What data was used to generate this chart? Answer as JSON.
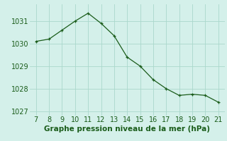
{
  "x": [
    7,
    8,
    9,
    10,
    11,
    12,
    13,
    14,
    15,
    16,
    17,
    18,
    19,
    20,
    21
  ],
  "y": [
    1030.1,
    1030.2,
    1030.6,
    1031.0,
    1031.35,
    1030.9,
    1030.35,
    1029.4,
    1029.0,
    1028.4,
    1028.0,
    1027.7,
    1027.75,
    1027.7,
    1027.4
  ],
  "line_color": "#1a5c1a",
  "marker": "+",
  "bg_color": "#d4f0ea",
  "grid_color": "#aad8cc",
  "xlabel": "Graphe pression niveau de la mer (hPa)",
  "xlabel_color": "#1a5c1a",
  "xlabel_fontsize": 7.5,
  "tick_color": "#1a5c1a",
  "tick_fontsize": 7,
  "xlim": [
    6.5,
    21.5
  ],
  "ylim": [
    1026.8,
    1031.75
  ],
  "yticks": [
    1027,
    1028,
    1029,
    1030,
    1031
  ],
  "xticks": [
    7,
    8,
    9,
    10,
    11,
    12,
    13,
    14,
    15,
    16,
    17,
    18,
    19,
    20,
    21
  ]
}
